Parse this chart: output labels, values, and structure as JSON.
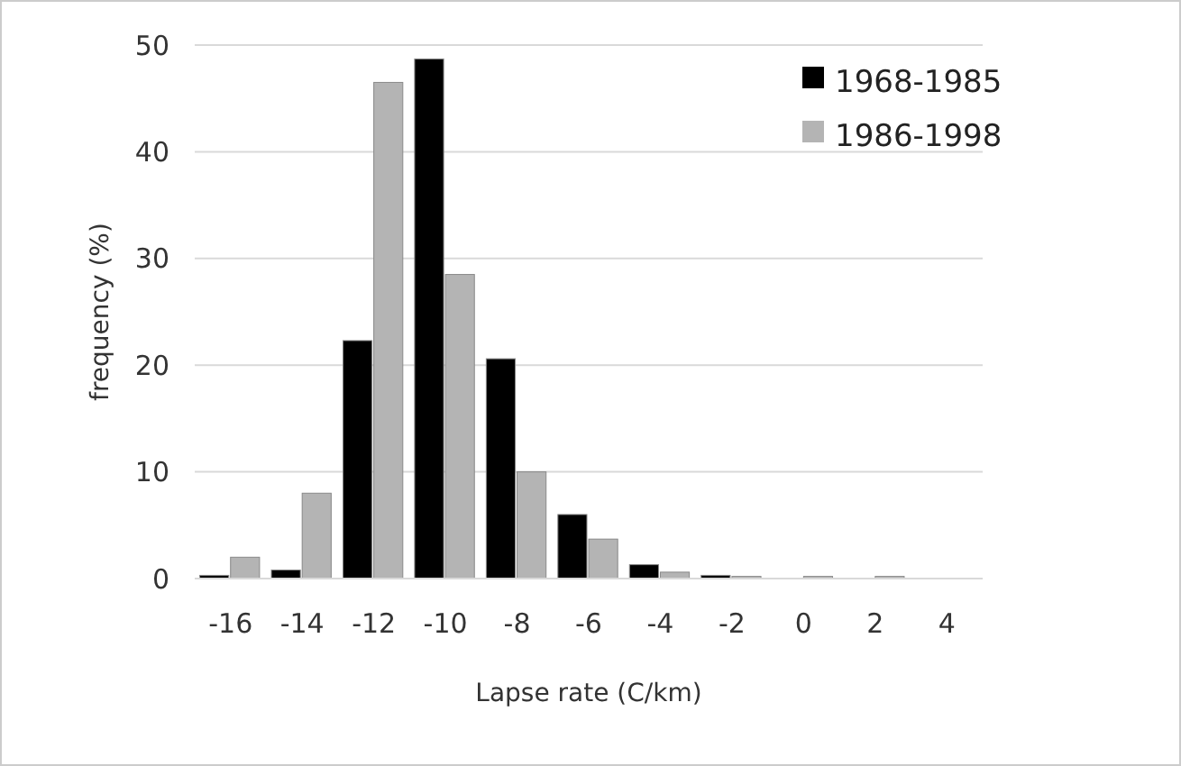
{
  "chart_data": {
    "type": "bar",
    "xlabel": "Lapse rate (C/km)",
    "ylabel": "frequency (%)",
    "categories": [
      "-16",
      "-14",
      "-12",
      "-10",
      "-8",
      "-6",
      "-4",
      "-2",
      "0",
      "2",
      "4"
    ],
    "series": [
      {
        "name": "1968-1985",
        "color": "#000000",
        "values": [
          0.3,
          0.8,
          22.3,
          48.7,
          20.6,
          6,
          1.3,
          0.3,
          0,
          0,
          0
        ]
      },
      {
        "name": "1986-1998",
        "color": "#b4b4b4",
        "values": [
          2,
          8,
          46.5,
          28.5,
          10,
          3.7,
          0.6,
          0.2,
          0.2,
          0.2,
          0
        ]
      }
    ],
    "ylim": [
      0,
      50
    ],
    "yticks": [
      0,
      10,
      20,
      30,
      40,
      50
    ],
    "grid": "y",
    "legend": "top right"
  }
}
